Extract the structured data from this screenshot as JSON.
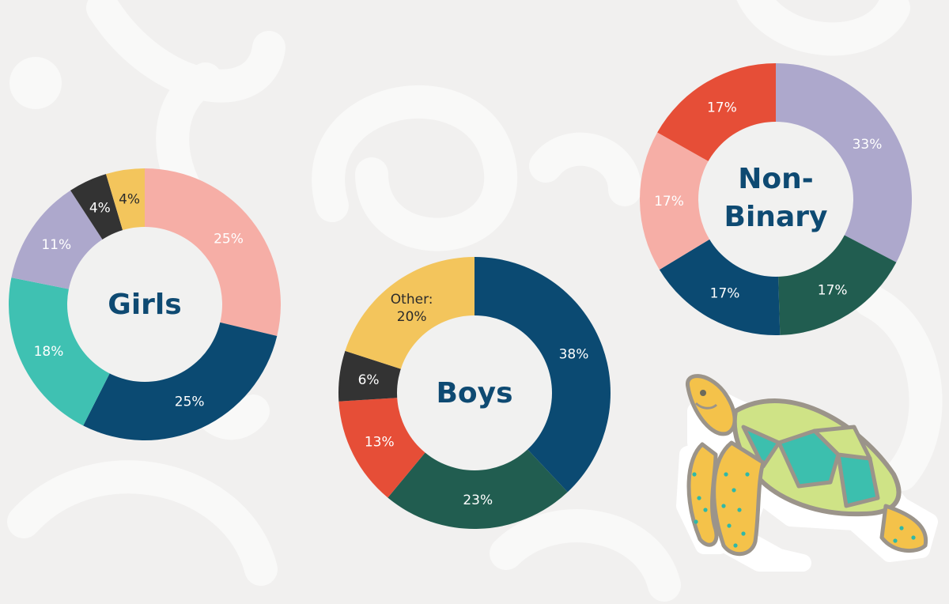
{
  "chart_data": [
    {
      "type": "pie",
      "center_label": "Girls",
      "slices": [
        {
          "label": "25%",
          "value": 25,
          "color": "#f6aea6"
        },
        {
          "label": "25%",
          "value": 25,
          "color": "#0b4a72"
        },
        {
          "label": "18%",
          "value": 18,
          "color": "#3fc1b2"
        },
        {
          "label": "11%",
          "value": 11,
          "color": "#ada8cc"
        },
        {
          "label": "4%",
          "value": 4,
          "color": "#333333"
        },
        {
          "label": "4%",
          "value": 4,
          "color": "#f3c55c"
        }
      ]
    },
    {
      "type": "pie",
      "center_label": "Boys",
      "slices": [
        {
          "label": "38%",
          "value": 38,
          "color": "#0b4a72"
        },
        {
          "label": "23%",
          "value": 23,
          "color": "#215d50"
        },
        {
          "label": "13%",
          "value": 13,
          "color": "#e64e37"
        },
        {
          "label": "6%",
          "value": 6,
          "color": "#333333"
        },
        {
          "label": "Other: 20%",
          "value": 20,
          "color": "#f3c55c"
        }
      ]
    },
    {
      "type": "pie",
      "center_label": "Non-Binary",
      "slices": [
        {
          "label": "33%",
          "value": 33,
          "color": "#ada8cc"
        },
        {
          "label": "17%",
          "value": 17,
          "color": "#215d50"
        },
        {
          "label": "17%",
          "value": 17,
          "color": "#0b4a72"
        },
        {
          "label": "17%",
          "value": 17,
          "color": "#f6aea6"
        },
        {
          "label": "17%",
          "value": 17,
          "color": "#e64e37"
        }
      ]
    }
  ],
  "decorations": {
    "sticker": "sea-turtle-sticker",
    "background": "abstract-swirls"
  }
}
